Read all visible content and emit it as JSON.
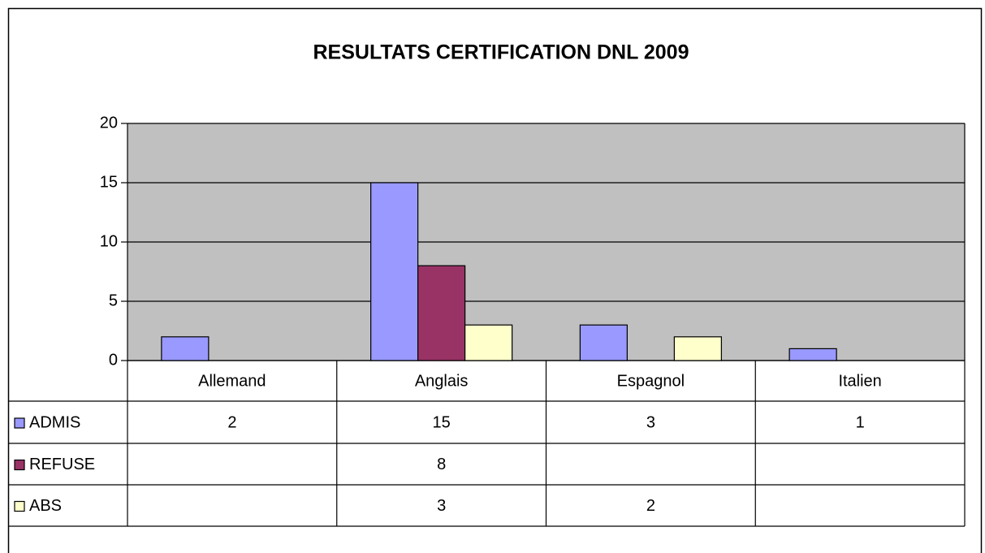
{
  "chart_data": {
    "type": "bar",
    "title": "RESULTATS CERTIFICATION DNL 2009",
    "categories": [
      "Allemand",
      "Anglais",
      "Espagnol",
      "Italien"
    ],
    "series": [
      {
        "name": "ADMIS",
        "color": "#9999ff",
        "values": [
          2,
          15,
          3,
          1
        ]
      },
      {
        "name": "REFUSE",
        "color": "#993366",
        "values": [
          null,
          8,
          null,
          null
        ]
      },
      {
        "name": "ABS",
        "color": "#ffffcc",
        "values": [
          null,
          3,
          2,
          null
        ]
      }
    ],
    "ylim": [
      0,
      20
    ],
    "yticks": [
      0,
      5,
      10,
      15,
      20
    ],
    "grid": true,
    "plot_background": "#c0c0c0"
  }
}
